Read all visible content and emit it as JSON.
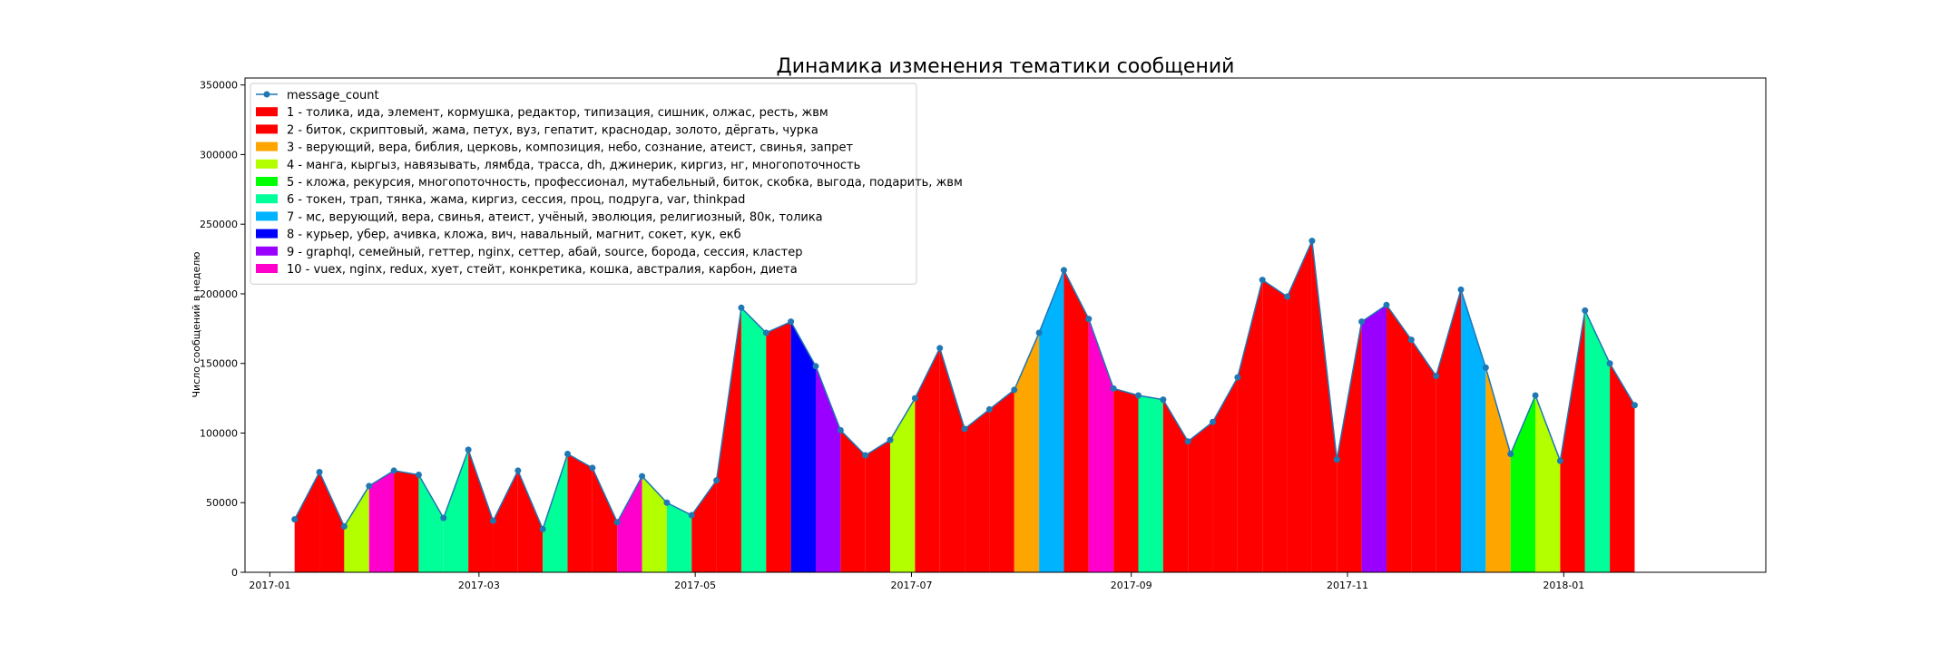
{
  "chart_data": {
    "type": "area",
    "title": "Динамика изменения тематики сообщений",
    "xlabel": "",
    "ylabel": "Число сообщений в неделю",
    "ylim": [
      0,
      355000
    ],
    "xlim": [
      "2016-12-25",
      "2018-02-27"
    ],
    "y_ticks": [
      0,
      50000,
      100000,
      150000,
      200000,
      250000,
      300000,
      350000
    ],
    "y_tick_labels": [
      "0",
      "50000",
      "100000",
      "150000",
      "200000",
      "250000",
      "300000",
      "350000"
    ],
    "x_ticks": [
      "2017-01-01",
      "2017-03-01",
      "2017-05-01",
      "2017-07-01",
      "2017-09-01",
      "2017-11-01",
      "2018-01-01"
    ],
    "x_tick_labels": [
      "2017-01",
      "2017-03",
      "2017-05",
      "2017-07",
      "2017-09",
      "2017-11",
      "2018-01"
    ],
    "grid": false,
    "legend_position": "top-left",
    "line_series": {
      "name": "message_count",
      "color": "#1f77b4",
      "x": [
        "2017-01-08",
        "2017-01-15",
        "2017-01-22",
        "2017-01-29",
        "2017-02-05",
        "2017-02-12",
        "2017-02-19",
        "2017-02-26",
        "2017-03-05",
        "2017-03-12",
        "2017-03-19",
        "2017-03-26",
        "2017-04-02",
        "2017-04-09",
        "2017-04-16",
        "2017-04-23",
        "2017-04-30",
        "2017-05-07",
        "2017-05-14",
        "2017-05-21",
        "2017-05-28",
        "2017-06-04",
        "2017-06-11",
        "2017-06-18",
        "2017-06-25",
        "2017-07-02",
        "2017-07-09",
        "2017-07-16",
        "2017-07-23",
        "2017-07-30",
        "2017-08-06",
        "2017-08-13",
        "2017-08-20",
        "2017-08-27",
        "2017-09-03",
        "2017-09-10",
        "2017-09-17",
        "2017-09-24",
        "2017-10-01",
        "2017-10-08",
        "2017-10-15",
        "2017-10-22",
        "2017-10-29",
        "2017-11-05",
        "2017-11-12",
        "2017-11-19",
        "2017-11-26",
        "2017-12-03",
        "2017-12-10",
        "2017-12-17",
        "2017-12-24",
        "2017-12-31",
        "2018-01-07",
        "2018-01-14",
        "2018-01-21"
      ],
      "y": [
        38000,
        72000,
        33000,
        62000,
        73000,
        70000,
        39000,
        88000,
        37000,
        73000,
        31000,
        85000,
        75000,
        36000,
        69000,
        50000,
        41000,
        66000,
        190000,
        172000,
        180000,
        148000,
        102000,
        84000,
        95000,
        125000,
        161000,
        103000,
        117000,
        131000,
        172000,
        217000,
        182000,
        132000,
        127000,
        124000,
        94000,
        108000,
        140000,
        210000,
        198000,
        238000,
        81000,
        180000,
        192000,
        167000,
        141000,
        203000,
        147000,
        85000,
        127000,
        80000,
        188000,
        150000,
        120000
      ]
    },
    "segment_topics": [
      1,
      1,
      4,
      10,
      1,
      6,
      6,
      1,
      1,
      1,
      6,
      1,
      1,
      10,
      4,
      6,
      1,
      1,
      6,
      1,
      8,
      9,
      1,
      1,
      4,
      1,
      1,
      1,
      1,
      3,
      7,
      1,
      10,
      1,
      6,
      1,
      1,
      1,
      1,
      1,
      1,
      1,
      1,
      9,
      1,
      1,
      1,
      7,
      3,
      5,
      4,
      1,
      6,
      1
    ],
    "topics": [
      {
        "id": 1,
        "label": "1 - толика, ида, элемент, кормушка, редактор, типизация, сишник, олжас, ресть, жвм",
        "color": "#ff0000"
      },
      {
        "id": 2,
        "label": "2 - биток, скриптовый, жама, петух, вуз, гепатит, краснодар, золото, дёргать, чурка",
        "color": "#ff0000"
      },
      {
        "id": 3,
        "label": "3 - верующий, вера, библия, церковь, композиция, небо, сознание, атеист, свинья, запрет",
        "color": "#ffa500"
      },
      {
        "id": 4,
        "label": "4 - манга, кыргыз, навязывать, лямбда, трасса, dh, джинерик, киргиз, нг, многопоточность",
        "color": "#b3ff00"
      },
      {
        "id": 5,
        "label": "5 - кложа, рекурсия, многопоточность, профессионал, мутабельный, биток, скобка, выгода, подарить, жвм",
        "color": "#00ff00"
      },
      {
        "id": 6,
        "label": "6 - токен, трап, тянка, жама, киргиз, сессия, проц, подруга, var, thinkpad",
        "color": "#00ff99"
      },
      {
        "id": 7,
        "label": "7 - мс, верующий, вера, свинья, атеист, учёный, эволюция, религиозный, 80к, толика",
        "color": "#00b3ff"
      },
      {
        "id": 8,
        "label": "8 - курьер, убер, ачивка, кложа, вич, навальный, магнит, сокет, кук, екб",
        "color": "#0000ff"
      },
      {
        "id": 9,
        "label": "9 - graphql, семейный, геттер, nginx, сеттер, абай, source, борода, сессия, кластер",
        "color": "#9900ff"
      },
      {
        "id": 10,
        "label": "10 - vuex, nginx, redux, хует, стейт, конкретика, кошка, австралия, карбон, диета",
        "color": "#ff00cc"
      }
    ]
  }
}
